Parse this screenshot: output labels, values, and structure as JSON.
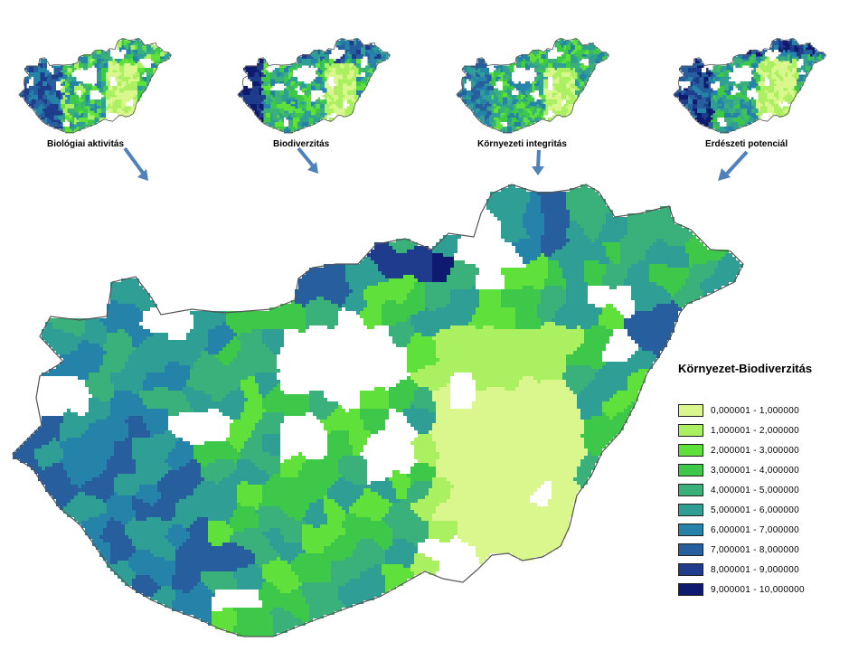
{
  "small_maps": [
    {
      "label": "Biológiai aktivitás"
    },
    {
      "label": "Biodiverzitás"
    },
    {
      "label": "Környezeti integritás"
    },
    {
      "label": "Erdészeti potenciál"
    }
  ],
  "legend": {
    "title": "Környezet-Biodiverzitás",
    "classes": [
      {
        "range": "0,000001 - 1,000000",
        "color": "#d9f78c"
      },
      {
        "range": "1,000001 - 2,000000",
        "color": "#aaf060"
      },
      {
        "range": "2,000001 - 3,000000",
        "color": "#5fe03a"
      },
      {
        "range": "3,000001 - 4,000000",
        "color": "#3dc84a"
      },
      {
        "range": "4,000001 - 5,000000",
        "color": "#3ab07a"
      },
      {
        "range": "5,000001 - 6,000000",
        "color": "#2f9e95"
      },
      {
        "range": "6,000001 - 7,000000",
        "color": "#2582a8"
      },
      {
        "range": "7,000001 - 8,000000",
        "color": "#265e9e"
      },
      {
        "range": "8,000001 - 9,000000",
        "color": "#1f3c8c"
      },
      {
        "range": "9,000001 - 10,000000",
        "color": "#0d1a70"
      }
    ],
    "no_data_color": "#ffffff"
  },
  "arrow_color": "#4f81bd"
}
